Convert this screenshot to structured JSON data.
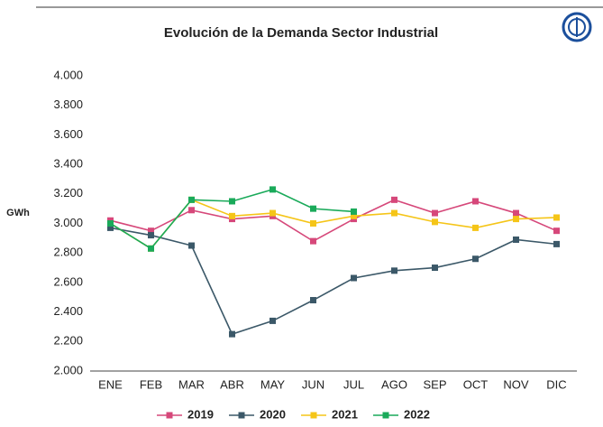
{
  "chart_data": {
    "type": "line",
    "title": "Evolución de la Demanda Sector Industrial",
    "y_label": "GWh",
    "categories": [
      "ENE",
      "FEB",
      "MAR",
      "ABR",
      "MAY",
      "JUN",
      "JUL",
      "AGO",
      "SEP",
      "OCT",
      "NOV",
      "DIC"
    ],
    "series": [
      {
        "name": "2019",
        "color": "#d6487a",
        "values": [
          3020,
          2950,
          3090,
          3030,
          3050,
          2880,
          3030,
          3160,
          3070,
          3150,
          3070,
          2950
        ]
      },
      {
        "name": "2020",
        "color": "#3b5868",
        "values": [
          2970,
          2920,
          2850,
          2250,
          2340,
          2480,
          2630,
          2680,
          2700,
          2760,
          2890,
          2860
        ]
      },
      {
        "name": "2021",
        "color": "#f5c518",
        "values": [
          3000,
          2830,
          3160,
          3050,
          3070,
          3000,
          3050,
          3070,
          3010,
          2970,
          3030,
          3040
        ]
      },
      {
        "name": "2022",
        "color": "#1aaa5a",
        "values": [
          3000,
          2830,
          3160,
          3150,
          3230,
          3100,
          3080,
          null,
          null,
          null,
          null,
          null
        ]
      }
    ],
    "ylim": [
      2000,
      4000
    ],
    "yticks": [
      {
        "value": 2000,
        "label": "2.000"
      },
      {
        "value": 2200,
        "label": "2.200"
      },
      {
        "value": 2400,
        "label": "2.400"
      },
      {
        "value": 2600,
        "label": "2.600"
      },
      {
        "value": 2800,
        "label": "2.800"
      },
      {
        "value": 3000,
        "label": "3.000"
      },
      {
        "value": 3200,
        "label": "3.200"
      },
      {
        "value": 3400,
        "label": "3.400"
      },
      {
        "value": 3600,
        "label": "3.600"
      },
      {
        "value": 3800,
        "label": "3.800"
      },
      {
        "value": 4000,
        "label": "4.000"
      }
    ],
    "grid": false,
    "legend": "bottom"
  }
}
